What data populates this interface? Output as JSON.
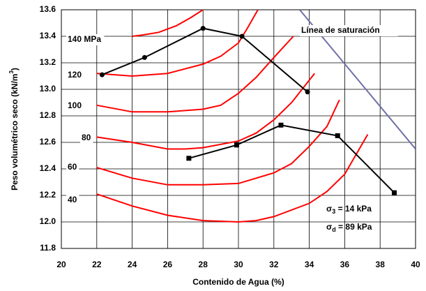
{
  "chart_data": {
    "type": "line",
    "xlabel": "Contenido de Agua  (%)",
    "ylabel": {
      "text": "Peso volumétrico seco (kN/m",
      "sup": "3",
      "end": ")"
    },
    "xlim": [
      20,
      40
    ],
    "ylim": [
      11.8,
      13.6
    ],
    "xticks": [
      20,
      22,
      24,
      26,
      28,
      30,
      32,
      34,
      36,
      38,
      40
    ],
    "yticks": [
      11.8,
      {
        "value": 12,
        "label": "12.0"
      },
      12.2,
      12.4,
      12.6,
      12.8,
      {
        "value": 13,
        "label": "13.0"
      },
      13.2,
      13.4,
      13.6
    ],
    "grid": true,
    "series": [
      {
        "name": "140 MPa",
        "color": "#ff0000",
        "x": [
          24,
          24.6,
          25.5,
          26.5,
          27.3,
          28
        ],
        "values": [
          13.4,
          13.41,
          13.43,
          13.48,
          13.54,
          13.6
        ]
      },
      {
        "name": "120",
        "color": "#ff0000",
        "x": [
          22,
          24,
          26,
          28,
          29,
          30,
          30.5,
          31.1
        ],
        "values": [
          13.12,
          13.1,
          13.12,
          13.19,
          13.25,
          13.35,
          13.46,
          13.6
        ]
      },
      {
        "name": "100",
        "color": "#ff0000",
        "x": [
          22,
          24,
          26,
          28,
          29,
          30,
          31,
          32,
          33.1
        ],
        "values": [
          12.88,
          12.83,
          12.83,
          12.85,
          12.88,
          12.97,
          13.09,
          13.24,
          13.4
        ]
      },
      {
        "name": "80",
        "color": "#ff0000",
        "x": [
          22,
          24,
          26,
          27,
          28,
          30,
          31,
          32,
          33,
          34.3
        ],
        "values": [
          12.64,
          12.6,
          12.55,
          12.55,
          12.56,
          12.61,
          12.67,
          12.77,
          12.9,
          13.12
        ]
      },
      {
        "name": "60",
        "color": "#ff0000",
        "x": [
          22,
          24,
          26,
          28,
          30,
          32,
          33,
          34,
          35,
          35.7
        ],
        "values": [
          12.41,
          12.33,
          12.28,
          12.28,
          12.29,
          12.37,
          12.44,
          12.57,
          12.72,
          12.92
        ]
      },
      {
        "name": "40",
        "color": "#ff0000",
        "x": [
          22,
          24,
          26,
          28,
          30,
          31,
          32,
          34,
          35,
          36,
          37.3
        ],
        "values": [
          12.21,
          12.12,
          12.05,
          12.01,
          12,
          12.01,
          12.04,
          12.14,
          12.23,
          12.36,
          12.66
        ]
      },
      {
        "color": "#000000",
        "marker": "circle",
        "x": [
          22.3,
          24.7,
          28,
          30.2,
          33.9
        ],
        "values": [
          13.11,
          13.24,
          13.46,
          13.4,
          12.98
        ]
      },
      {
        "color": "#000000",
        "marker": "square",
        "x": [
          27.2,
          29.9,
          32.4,
          35.6,
          38.8
        ],
        "values": [
          12.48,
          12.58,
          12.73,
          12.65,
          12.22
        ]
      },
      {
        "name": "Línea de saturación",
        "color": "#7070a8",
        "x": [
          33.46,
          40
        ],
        "values": [
          13.6,
          12.55
        ]
      }
    ],
    "annotations": [
      {
        "symbol": "σ",
        "sub": "3",
        "text": " = 14 kPa"
      },
      {
        "symbol": "σ",
        "sub": "d",
        "text": " = 89 kPa"
      }
    ]
  }
}
